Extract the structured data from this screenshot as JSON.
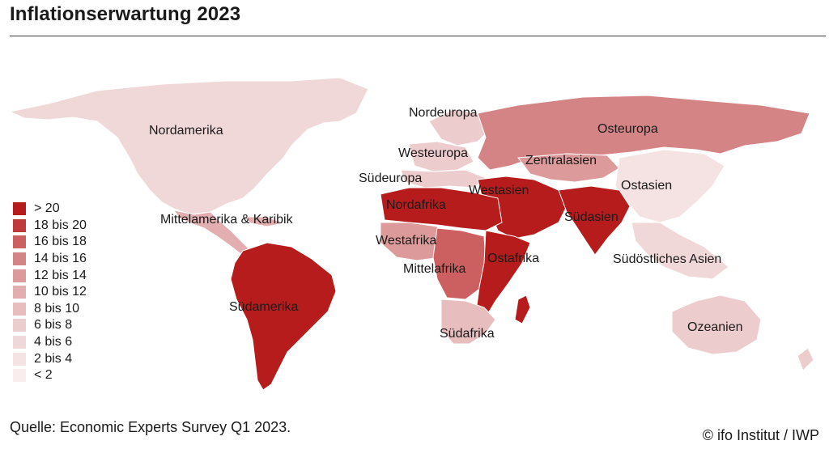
{
  "title": "Inflationserwartung 2023",
  "source": "Quelle: Economic Experts Survey Q1 2023.",
  "credit": "© ifo Institut / IWP",
  "legend": [
    {
      "label": "> 20",
      "color": "#b71c1c"
    },
    {
      "label": "18 bis 20",
      "color": "#c0393b"
    },
    {
      "label": "16 bis 18",
      "color": "#cc5f60"
    },
    {
      "label": "14 bis 16",
      "color": "#d58486"
    },
    {
      "label": "12 bis 14",
      "color": "#dd9a9b"
    },
    {
      "label": "10 bis 12",
      "color": "#e3aeaf"
    },
    {
      "label": "8 bis 10",
      "color": "#e8bdbe"
    },
    {
      "label": "6 bis 8",
      "color": "#edcccd"
    },
    {
      "label": "4 bis 6",
      "color": "#f1d8d8"
    },
    {
      "label": "2 bis 4",
      "color": "#f5e2e2"
    },
    {
      "label": "< 2",
      "color": "#f9eded"
    }
  ],
  "regions": [
    {
      "name": "Nordamerika",
      "bin": "4 bis 6"
    },
    {
      "name": "Mittelamerika & Karibik",
      "bin": "10 bis 12"
    },
    {
      "name": "Südamerika",
      "bin": "> 20"
    },
    {
      "name": "Nordeuropa",
      "bin": "6 bis 8"
    },
    {
      "name": "Westeuropa",
      "bin": "6 bis 8"
    },
    {
      "name": "Südeuropa",
      "bin": "6 bis 8"
    },
    {
      "name": "Osteuropa",
      "bin": "14 bis 16"
    },
    {
      "name": "Zentralasien",
      "bin": "12 bis 14"
    },
    {
      "name": "Westasien",
      "bin": "> 20"
    },
    {
      "name": "Ostasien",
      "bin": "2 bis 4"
    },
    {
      "name": "Südasien",
      "bin": "> 20"
    },
    {
      "name": "Südöstliches Asien",
      "bin": "4 bis 6"
    },
    {
      "name": "Nordafrika",
      "bin": "> 20"
    },
    {
      "name": "Westafrika",
      "bin": "12 bis 14"
    },
    {
      "name": "Mittelafrika",
      "bin": "16 bis 18"
    },
    {
      "name": "Ostafrika",
      "bin": "> 20"
    },
    {
      "name": "Südafrika",
      "bin": "8 bis 10"
    },
    {
      "name": "Ozeanien",
      "bin": "6 bis 8"
    }
  ]
}
